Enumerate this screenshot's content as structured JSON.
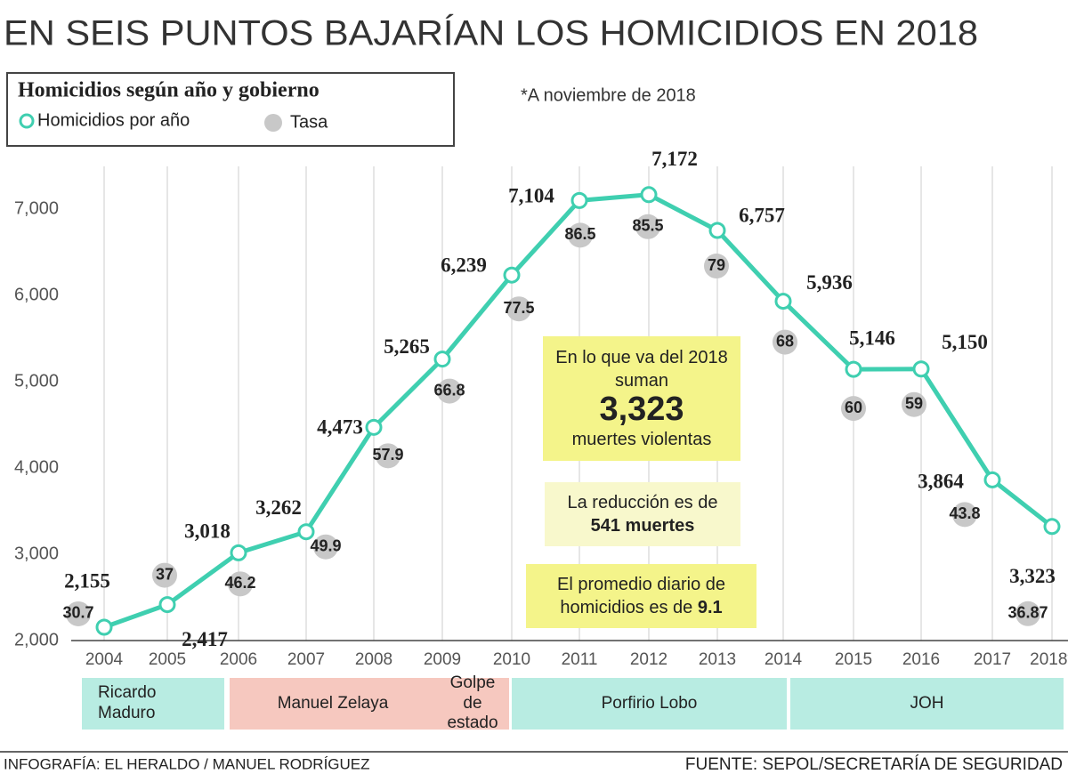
{
  "chart_data": {
    "type": "line",
    "title": "EN SEIS PUNTOS BAJARÍAN LOS HOMICIDIOS EN 2018",
    "subtitle": "Homicidios según año y gobierno",
    "note": "*A noviembre de 2018",
    "categories": [
      "2004",
      "2005",
      "2006",
      "2007",
      "2008",
      "2009",
      "2010",
      "2011",
      "2012",
      "2013",
      "2014",
      "2015",
      "2016",
      "2017",
      "2018*"
    ],
    "series": [
      {
        "name": "Homicidios por año",
        "color": "#3fcfb0",
        "values": [
          2155,
          2417,
          3018,
          3262,
          4473,
          5265,
          6239,
          7104,
          7172,
          6757,
          5936,
          5146,
          5150,
          3864,
          3323
        ],
        "value_labels": [
          "2,155",
          "2,417",
          "3,018",
          "3,262",
          "4,473",
          "5,265",
          "6,239",
          "7,104",
          "7,172",
          "6,757",
          "5,936",
          "5,146",
          "5,150",
          "3,864",
          "3,323"
        ]
      },
      {
        "name": "Tasa",
        "color": "#c8c8c8",
        "values": [
          30.7,
          37,
          46.2,
          49.9,
          57.9,
          66.8,
          77.5,
          86.5,
          85.5,
          79,
          68,
          60,
          59,
          43.8,
          36.87
        ]
      }
    ],
    "ylim": [
      2000,
      7500
    ],
    "yticks": [
      {
        "value": 2000,
        "label": "2,000"
      },
      {
        "value": 3000,
        "label": "3,000"
      },
      {
        "value": 4000,
        "label": "4,000"
      },
      {
        "value": 5000,
        "label": "5,000"
      },
      {
        "value": 6000,
        "label": "6,000"
      },
      {
        "value": 7000,
        "label": "7,000"
      }
    ],
    "grid": "x",
    "callouts": [
      {
        "text": "En lo que va del 2018 suman",
        "emphasis": "3,323",
        "note": "muertes violentas",
        "color": "#f4f48a"
      },
      {
        "text": "La reducción es de",
        "emphasis": "541 muertes",
        "color": "#f8f8cc"
      },
      {
        "text": "El promedio diario de homicidios es de",
        "emphasis": "9.1",
        "color": "#f4f48a"
      }
    ],
    "governments": [
      {
        "name": "Ricardo Maduro",
        "color": "#b8ece2"
      },
      {
        "name": "Manuel Zelaya",
        "color": "#f6c8bf"
      },
      {
        "name": "Golpe de estado",
        "color": "#f6c8bf"
      },
      {
        "name": "Porfirio Lobo",
        "color": "#b8ece2"
      },
      {
        "name": "JOH",
        "color": "#b8ece2"
      }
    ],
    "credit": "INFOGRAFÍA: EL HERALDO / MANUEL RODRÍGUEZ",
    "source": "FUENTE: SEPOL/SECRETARÍA DE SEGURIDAD"
  }
}
